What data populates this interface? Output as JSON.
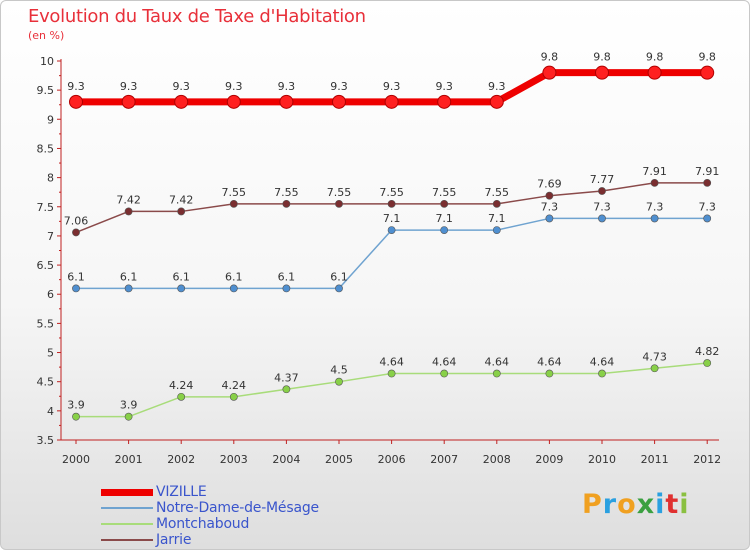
{
  "title": "Evolution du Taux de Taxe d'Habitation",
  "subtitle": "(en %)",
  "logo_text": "Proxiti",
  "logo_colors": [
    "#f0a020",
    "#2aa0e0",
    "#f0a020",
    "#3aa040",
    "#2aa0e0",
    "#e03030",
    "#8ac040"
  ],
  "chart_data": {
    "type": "line",
    "title": "Evolution du Taux de Taxe d'Habitation",
    "ylabel": "(en %)",
    "xlabel": "",
    "x": [
      "2000",
      "2001",
      "2002",
      "2003",
      "2004",
      "2005",
      "2006",
      "2007",
      "2008",
      "2009",
      "2010",
      "2011",
      "2012"
    ],
    "ylim": [
      3.5,
      10
    ],
    "yticks": [
      "3.5",
      "4",
      "4.5",
      "5",
      "5.5",
      "6",
      "6.5",
      "7",
      "7.5",
      "8",
      "8.5",
      "9",
      "9.5",
      "10"
    ],
    "grid": false,
    "legend_position": "bottom-left",
    "series": [
      {
        "name": "VIZILLE",
        "color": "#ee0000",
        "marker_fill": "#ff2020",
        "emphasis": true,
        "values": [
          9.3,
          9.3,
          9.3,
          9.3,
          9.3,
          9.3,
          9.3,
          9.3,
          9.3,
          9.8,
          9.8,
          9.8,
          9.8
        ],
        "labels": [
          "9.3",
          "9.3",
          "9.3",
          "9.3",
          "9.3",
          "9.3",
          "9.3",
          "9.3",
          "9.3",
          "9.8",
          "9.8",
          "9.8",
          "9.8"
        ]
      },
      {
        "name": "Notre-Dame-de-Mésage",
        "color": "#6fa3d0",
        "marker_fill": "#4f8fd0",
        "emphasis": false,
        "values": [
          6.1,
          6.1,
          6.1,
          6.1,
          6.1,
          6.1,
          7.1,
          7.1,
          7.1,
          7.3,
          7.3,
          7.3,
          7.3
        ],
        "labels": [
          "6.1",
          "6.1",
          "6.1",
          "6.1",
          "6.1",
          "6.1",
          "7.1",
          "7.1",
          "7.1",
          "7.3",
          "7.3",
          "7.3",
          "7.3"
        ]
      },
      {
        "name": "Montchaboud",
        "color": "#a8dc7a",
        "marker_fill": "#88d048",
        "emphasis": false,
        "values": [
          3.9,
          3.9,
          4.24,
          4.24,
          4.37,
          4.5,
          4.64,
          4.64,
          4.64,
          4.64,
          4.64,
          4.73,
          4.82
        ],
        "labels": [
          "3.9",
          "3.9",
          "4.24",
          "4.24",
          "4.37",
          "4.5",
          "4.64",
          "4.64",
          "4.64",
          "4.64",
          "4.64",
          "4.73",
          "4.82"
        ]
      },
      {
        "name": "Jarrie",
        "color": "#8a4a4a",
        "marker_fill": "#7a2e30",
        "emphasis": false,
        "values": [
          7.06,
          7.42,
          7.42,
          7.55,
          7.55,
          7.55,
          7.55,
          7.55,
          7.55,
          7.69,
          7.77,
          7.91,
          7.91
        ],
        "labels": [
          "7.06",
          "7.42",
          "7.42",
          "7.55",
          "7.55",
          "7.55",
          "7.55",
          "7.55",
          "7.55",
          "7.69",
          "7.77",
          "7.91",
          "7.91"
        ]
      }
    ]
  }
}
